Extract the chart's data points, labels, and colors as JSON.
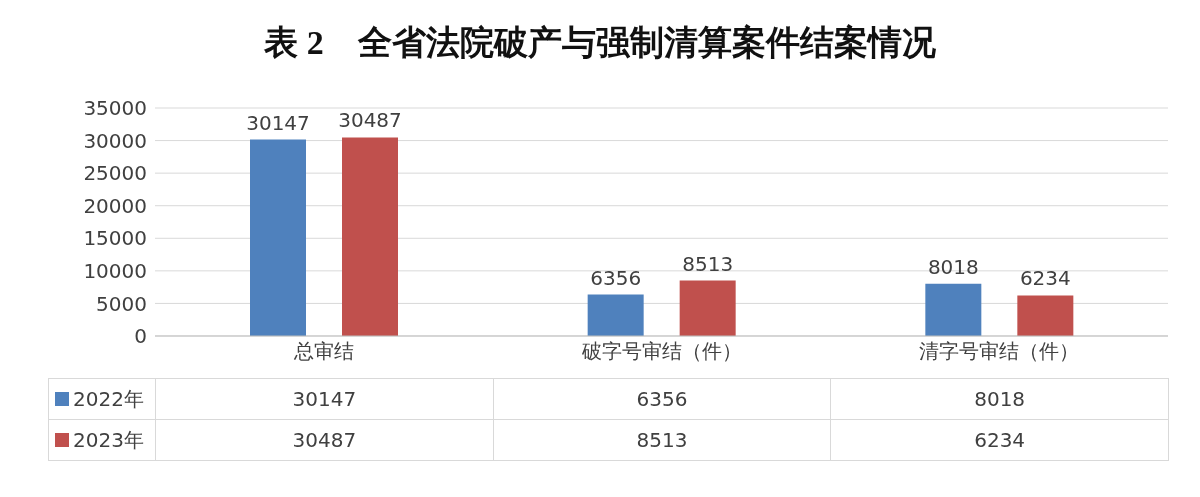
{
  "chart_data": {
    "type": "bar",
    "title": "表 2　全省法院破产与强制清算案件结案情况",
    "categories": [
      "总审结",
      "破字号审结（件）",
      "清字号审结（件）"
    ],
    "series": [
      {
        "name": "2022年",
        "color": "#4f81bd",
        "values": [
          30147,
          6356,
          8018
        ]
      },
      {
        "name": "2023年",
        "color": "#c0504d",
        "values": [
          30487,
          8513,
          6234
        ]
      }
    ],
    "ylim": [
      0,
      35000
    ],
    "yticks": [
      0,
      5000,
      10000,
      15000,
      20000,
      25000,
      30000,
      35000
    ],
    "grid": "y",
    "data_labels": true,
    "legend": "bottom",
    "annotations": [
      "30147",
      "6356",
      "8018",
      "30487",
      "8513",
      "6234"
    ]
  }
}
